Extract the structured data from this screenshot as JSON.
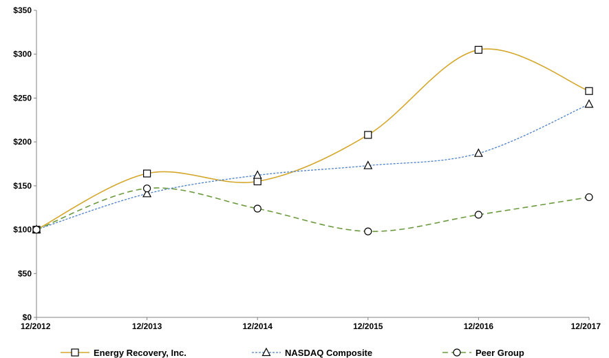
{
  "chart_data": {
    "type": "line",
    "title": "",
    "xlabel": "",
    "ylabel": "",
    "categories": [
      "12/2012",
      "12/2013",
      "12/2014",
      "12/2015",
      "12/2016",
      "12/2017"
    ],
    "ylim": [
      0,
      350
    ],
    "y_ticks": [
      0,
      50,
      100,
      150,
      200,
      250,
      300,
      350
    ],
    "y_tick_labels": [
      "$0",
      "$50",
      "$100",
      "$150",
      "$200",
      "$250",
      "$300",
      "$350"
    ],
    "grid": false,
    "legend_position": "bottom",
    "series": [
      {
        "name": "Energy Recovery, Inc.",
        "values": [
          100,
          164,
          155,
          208,
          305,
          258
        ],
        "color": "#d4a72c",
        "line_style": "solid",
        "marker": "square"
      },
      {
        "name": "NASDAQ Composite",
        "values": [
          100,
          141,
          162,
          173,
          187,
          243
        ],
        "color": "#4a7fc8",
        "line_style": "dotted",
        "marker": "triangle"
      },
      {
        "name": "Peer Group",
        "values": [
          100,
          147,
          124,
          98,
          117,
          137
        ],
        "color": "#6b9a3e",
        "line_style": "dashed",
        "marker": "circle"
      }
    ]
  }
}
